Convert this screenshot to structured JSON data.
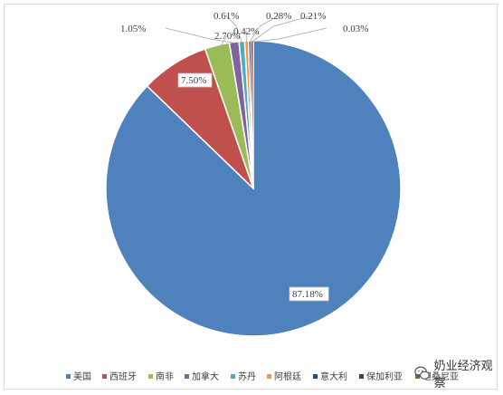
{
  "chart_data": {
    "type": "pie",
    "title": "",
    "start_angle_deg": 0,
    "direction": "clockwise",
    "legend_position": "bottom",
    "slices": [
      {
        "name": "美国",
        "value": 87.18,
        "label": "87.18%",
        "color": "#4f81bd"
      },
      {
        "name": "西班牙",
        "value": 7.5,
        "label": "7.50%",
        "color": "#c0504d"
      },
      {
        "name": "南非",
        "value": 2.7,
        "label": "2.70%",
        "color": "#9bbb59"
      },
      {
        "name": "加拿大",
        "value": 1.05,
        "label": "1.05%",
        "color": "#8064a2"
      },
      {
        "name": "苏丹",
        "value": 0.61,
        "label": "0.61%",
        "color": "#4bacc6"
      },
      {
        "name": "阿根廷",
        "value": 0.42,
        "label": "0.42%",
        "color": "#f79646"
      },
      {
        "name": "意大利",
        "value": 0.28,
        "label": "0.28%",
        "color": "#2c4d75"
      },
      {
        "name": "保加利亚",
        "value": 0.21,
        "label": "0.21%",
        "color": "#772c2a"
      },
      {
        "name": "坦桑尼亚",
        "value": 0.03,
        "label": "0.03%",
        "color": "#5f7530"
      }
    ]
  },
  "watermark": {
    "text": "奶业经济观察",
    "icon": "wechat-icon"
  }
}
